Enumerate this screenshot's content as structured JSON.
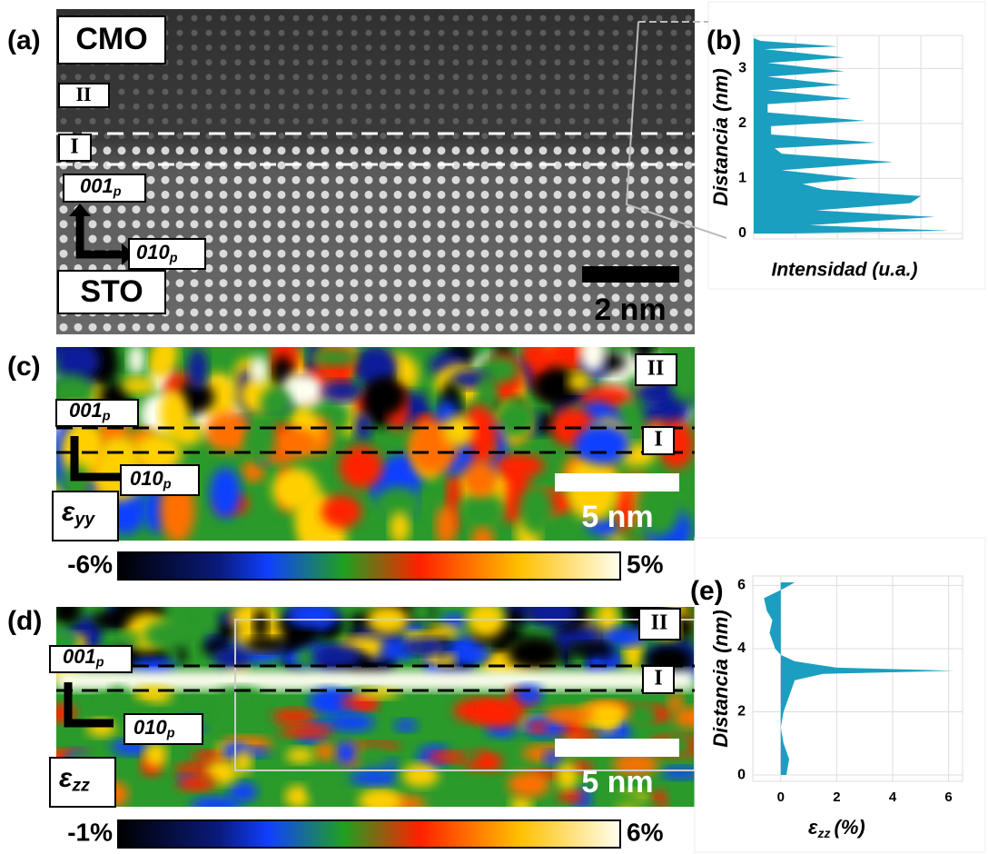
{
  "panels": [
    {
      "label": "(a)",
      "top": "CMO",
      "bottom": "STO",
      "layer_upper": "II",
      "layer_lower": "I",
      "dir_up": "001",
      "dir_right": "010",
      "dir_sub": "p",
      "scale": "2 nm"
    },
    {
      "label": "(c)",
      "layer_upper": "II",
      "layer_lower": "I",
      "dir_up": "001",
      "dir_right": "010",
      "dir_sub": "p",
      "strain": "ε",
      "strain_sub": "yy",
      "scale": "5 nm",
      "colorbar": [
        "-6%",
        "5%"
      ]
    },
    {
      "label": "(d)",
      "layer_upper": "II",
      "layer_lower": "I",
      "dir_up": "001",
      "dir_right": "010",
      "dir_sub": "p",
      "strain": "ε",
      "strain_sub": "zz",
      "scale": "5 nm",
      "colorbar": [
        "-1%",
        "6%"
      ]
    }
  ],
  "chart_data": [
    {
      "type": "area",
      "label": "(b)",
      "x_label": "Intensidad (u.a.)",
      "y_label": "Distancia (nm)",
      "color": "#1a9fc0",
      "y": [
        0,
        0.05,
        0.15,
        0.3,
        0.42,
        0.55,
        0.68,
        0.8,
        0.9,
        1.0,
        1.15,
        1.3,
        1.45,
        1.55,
        1.65,
        1.8,
        1.95,
        2.05,
        2.2,
        2.35,
        2.45,
        2.6,
        2.7,
        2.85,
        2.95,
        3.1,
        3.2,
        3.35,
        3.4,
        3.5,
        3.55
      ],
      "values": [
        1.0,
        5.6,
        1.6,
        5.2,
        1.8,
        4.5,
        4.8,
        2.0,
        1.4,
        3.0,
        0.8,
        4.0,
        0.8,
        0.6,
        3.5,
        0.5,
        0.5,
        3.2,
        0.4,
        0.4,
        2.8,
        0.4,
        2.5,
        0.4,
        2.6,
        0.4,
        2.6,
        0.3,
        2.4,
        0.2,
        0
      ],
      "xlim": [
        0,
        6
      ],
      "ylim": [
        -0.1,
        3.6
      ],
      "yticks": [
        0,
        1,
        2,
        3
      ]
    },
    {
      "type": "area",
      "label": "(e)",
      "x_label": "ε",
      "x_label_sub": "zz",
      "x_label_unit": "(%)",
      "y_label": "Distancia (nm)",
      "color": "#1a9fc0",
      "y": [
        0,
        0.5,
        1,
        1.5,
        2,
        2.5,
        3,
        3.2,
        3.3,
        3.4,
        3.6,
        3.8,
        4,
        4.5,
        4.9,
        5.2,
        5.6,
        5.9,
        6.1
      ],
      "values": [
        0.2,
        0.3,
        0.1,
        0.0,
        0.1,
        0.3,
        0.5,
        1.5,
        6.2,
        2.0,
        0.5,
        0,
        -0.2,
        -0.4,
        -0.3,
        -0.5,
        -0.6,
        0.1,
        0.5
      ],
      "xlim": [
        -1,
        6.5
      ],
      "ylim": [
        -0.2,
        6.3
      ],
      "xticks": [
        0,
        2,
        4,
        6
      ],
      "yticks": [
        0,
        2,
        4,
        6
      ]
    }
  ]
}
